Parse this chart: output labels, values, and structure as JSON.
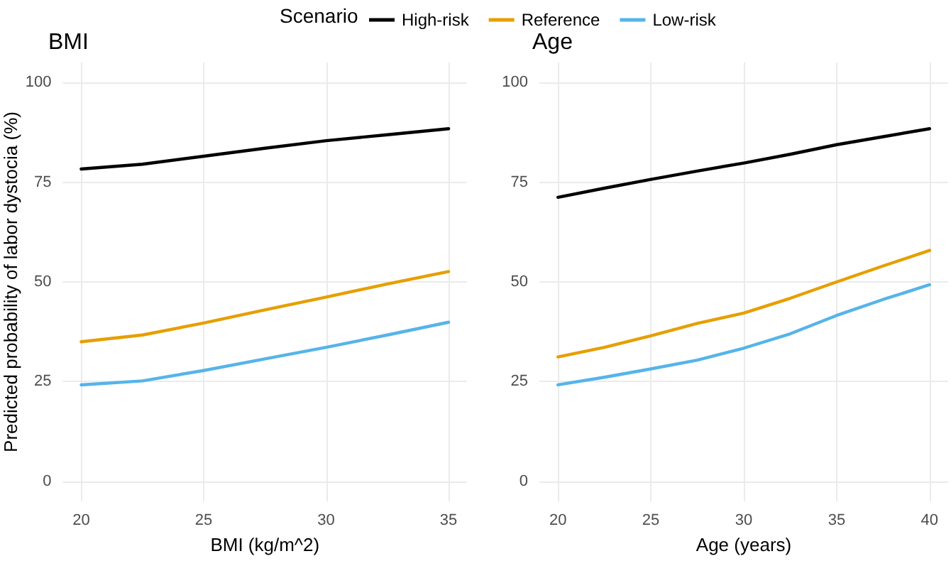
{
  "chart_data": [
    {
      "type": "line",
      "title": "BMI",
      "xlabel": "BMI (kg/m^2)",
      "ylabel": "Predicted probability of labor dystocia (%)",
      "legend": "top",
      "legend_title": "Scenario",
      "grid": true,
      "marker": "none",
      "line_style": "solid",
      "x": [
        20,
        22.5,
        25,
        27.5,
        30,
        32.5,
        35
      ],
      "xlim": [
        19.25,
        35.75
      ],
      "xticks": [
        20,
        25,
        30,
        35
      ],
      "ylim": [
        -5,
        105
      ],
      "yticks": [
        0,
        25,
        50,
        75,
        100
      ],
      "series": [
        {
          "name": "High-risk",
          "color": "#000000",
          "values": [
            78.3,
            79.5,
            81.5,
            83.5,
            85.4,
            86.9,
            88.4
          ]
        },
        {
          "name": "Reference",
          "color": "#e69f00",
          "values": [
            35.0,
            36.7,
            39.7,
            43.0,
            46.2,
            49.5,
            52.6
          ]
        },
        {
          "name": "Low-risk",
          "color": "#56b4e9",
          "values": [
            24.2,
            25.2,
            27.8,
            30.7,
            33.6,
            36.7,
            39.9
          ]
        }
      ]
    },
    {
      "type": "line",
      "title": "Age",
      "xlabel": "Age (years)",
      "grid": true,
      "marker": "none",
      "line_style": "solid",
      "x": [
        20,
        22.5,
        25,
        27.5,
        30,
        32.5,
        35,
        37.5,
        40
      ],
      "xlim": [
        19,
        41
      ],
      "xticks": [
        20,
        25,
        30,
        35,
        40
      ],
      "ylim": [
        -5,
        105
      ],
      "yticks": [
        0,
        25,
        50,
        75,
        100
      ],
      "series": [
        {
          "color": "#000000",
          "values": [
            71.2,
            73.5,
            75.7,
            77.8,
            79.8,
            82.0,
            84.4,
            86.4,
            88.4
          ]
        },
        {
          "color": "#e69f00",
          "values": [
            31.2,
            33.6,
            36.5,
            39.6,
            42.2,
            45.9,
            50.0,
            54.0,
            57.9
          ]
        },
        {
          "color": "#56b4e9",
          "values": [
            24.2,
            26.1,
            28.2,
            30.4,
            33.4,
            37.0,
            41.6,
            45.6,
            49.3
          ]
        }
      ]
    }
  ]
}
